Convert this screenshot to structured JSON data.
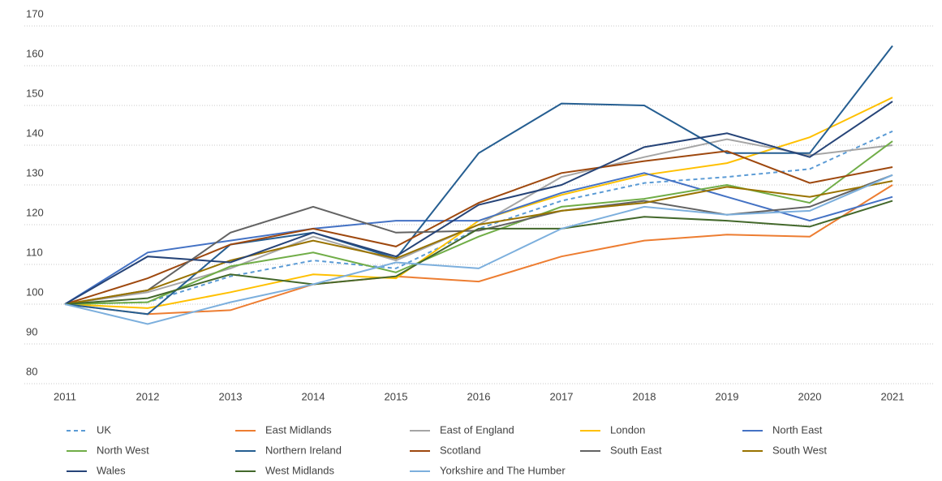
{
  "chart_data": {
    "type": "line",
    "categories": [
      "2011",
      "2012",
      "2013",
      "2014",
      "2015",
      "2016",
      "2017",
      "2018",
      "2019",
      "2020",
      "2021"
    ],
    "ylim": [
      80,
      170
    ],
    "yticks": [
      80,
      90,
      100,
      110,
      120,
      130,
      140,
      150,
      160,
      170
    ],
    "grid": true,
    "legend": "bottom",
    "series": [
      {
        "name": "UK",
        "color": "#5b9bd5",
        "dashed": true,
        "values": [
          100,
          100.5,
          107,
          111,
          109,
          119,
          126,
          130.5,
          132,
          134,
          143.5
        ]
      },
      {
        "name": "East Midlands",
        "color": "#ed7d31",
        "values": [
          100,
          97.5,
          98.5,
          105,
          107,
          105.7,
          112,
          116,
          117.5,
          117,
          130
        ]
      },
      {
        "name": "East of England",
        "color": "#a5a5a5",
        "values": [
          100,
          103,
          109,
          117,
          111,
          120,
          132,
          137,
          141.5,
          137.5,
          140
        ]
      },
      {
        "name": "London",
        "color": "#ffc000",
        "values": [
          100,
          99,
          103,
          107.5,
          106.5,
          121,
          127.5,
          132.5,
          135.5,
          142,
          152
        ]
      },
      {
        "name": "North East",
        "color": "#4472c4",
        "values": [
          100,
          113,
          116,
          119,
          121,
          121,
          128,
          133,
          127,
          121,
          127
        ]
      },
      {
        "name": "North West",
        "color": "#70ad47",
        "values": [
          100,
          100.5,
          109.5,
          113,
          108,
          117,
          124.5,
          126.5,
          130,
          125.5,
          141
        ]
      },
      {
        "name": "Northern Ireland",
        "color": "#255e91",
        "values": [
          100,
          97.5,
          115,
          118,
          111.5,
          138,
          150.5,
          150,
          138,
          138,
          165
        ]
      },
      {
        "name": "Scotland",
        "color": "#9e480e",
        "values": [
          100,
          106.5,
          115,
          119,
          114.5,
          125.5,
          133,
          136,
          138.5,
          130.5,
          134.5
        ]
      },
      {
        "name": "South East",
        "color": "#636363",
        "values": [
          100,
          103.5,
          118,
          124.5,
          118,
          118.5,
          123.5,
          126,
          122.5,
          124.5,
          132.5
        ]
      },
      {
        "name": "South West",
        "color": "#997300",
        "values": [
          100,
          103.5,
          111,
          116,
          111.5,
          120,
          123.5,
          125.5,
          129.5,
          127,
          131
        ]
      },
      {
        "name": "Wales",
        "color": "#264478",
        "values": [
          100,
          112,
          110.5,
          118,
          112,
          125,
          130,
          139.5,
          143,
          137,
          151
        ]
      },
      {
        "name": "West Midlands",
        "color": "#43682b",
        "values": [
          100,
          101.5,
          107.5,
          105,
          107,
          119,
          119,
          122,
          121,
          119.5,
          126
        ]
      },
      {
        "name": "Yorkshire and The Humber",
        "color": "#7cafdd",
        "values": [
          100,
          95,
          100.5,
          105,
          110.5,
          109,
          119,
          124.5,
          122.5,
          123.5,
          132.5
        ]
      }
    ]
  }
}
